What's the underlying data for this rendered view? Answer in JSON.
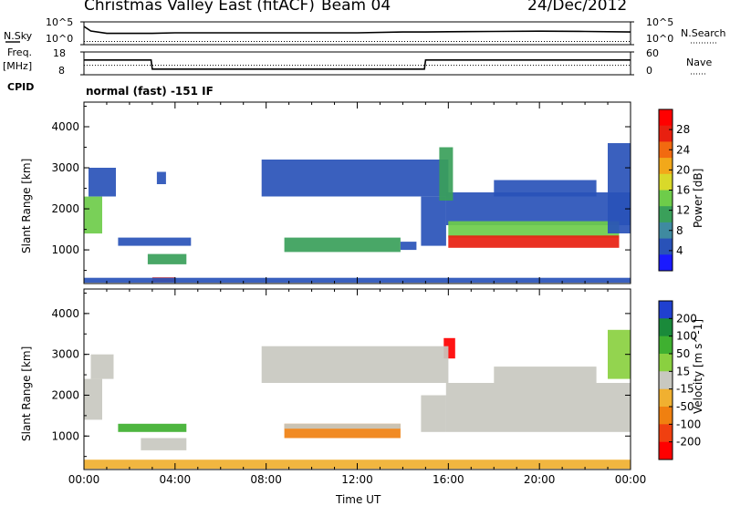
{
  "header": {
    "title": "Christmas Valley East (fitACF)",
    "beam": "Beam 04",
    "date": "24/Dec/2012"
  },
  "top_panels": {
    "nsky_label": "N.Sky",
    "nsearch_label": "N.Search",
    "nsky_ticks": [
      "10^5",
      "10^0"
    ],
    "nsearch_ticks": [
      "10^5",
      "10^0"
    ],
    "freq_label_1": "Freq.",
    "freq_label_2": "[MHz]",
    "freq_ticks": [
      "18",
      "8"
    ],
    "nave_label": "Nave",
    "nave_ticks": [
      "60",
      "0"
    ],
    "cpid_label": "CPID",
    "cpid_value": "normal (fast) -151 IF"
  },
  "colors": {
    "power_scale": [
      "#1a1aff",
      "#2952b8",
      "#3f8aa0",
      "#3aa05a",
      "#6ecc4a",
      "#d9d92a",
      "#f2a81a",
      "#f26a10",
      "#e82010",
      "#ff0000"
    ],
    "velocity_scale": [
      "#2040d0",
      "#1a8a3a",
      "#3fb030",
      "#8ad040",
      "#c8c8c0",
      "#f0b030",
      "#f08010",
      "#f04010",
      "#ff0000"
    ]
  },
  "chart_data": [
    {
      "type": "line",
      "panel": "N.Sky / N.Search",
      "x_unit": "hours UT",
      "x": [
        0,
        0.3,
        1,
        2,
        3,
        4,
        6,
        8,
        10,
        12,
        14,
        15,
        16,
        18,
        20,
        22,
        24
      ],
      "series": [
        {
          "name": "N.Sky",
          "values": [
            10000,
            1000,
            300,
            300,
            300,
            400,
            400,
            400,
            400,
            400,
            600,
            600,
            700,
            800,
            900,
            800,
            600
          ]
        },
        {
          "name": "N.Search",
          "values": [
            5,
            5,
            5,
            5,
            5,
            5,
            5,
            5,
            5,
            5,
            5,
            5,
            5,
            5,
            5,
            5,
            5
          ]
        }
      ],
      "yscale": "log",
      "ylim": [
        1,
        100000
      ]
    },
    {
      "type": "line",
      "panel": "Freq / Nave",
      "x_unit": "hours UT",
      "x": [
        0,
        2.95,
        3.0,
        14.95,
        15.0,
        24
      ],
      "series": [
        {
          "name": "Freq.",
          "values": [
            14.5,
            14.5,
            10.5,
            10.5,
            14.5,
            14.5
          ]
        },
        {
          "name": "Nave",
          "values": [
            25,
            25,
            25,
            25,
            25,
            25
          ]
        }
      ],
      "ylim": [
        8,
        18
      ],
      "y2lim": [
        0,
        60
      ]
    },
    {
      "type": "heatmap",
      "panel": "Power",
      "xlabel": "",
      "ylabel": "Slant Range [km]",
      "xlim": [
        0,
        24
      ],
      "ylim": [
        180,
        4600
      ],
      "yticks": [
        1000,
        2000,
        3000,
        4000
      ],
      "colorbar_label": "Power [dB]",
      "colorbar_ticks": [
        4,
        8,
        12,
        16,
        20,
        24,
        28
      ],
      "colorbar_range": [
        0,
        32
      ],
      "regions": [
        {
          "t0": 0.0,
          "t1": 0.8,
          "r0": 1400,
          "r1": 2300,
          "level": 14
        },
        {
          "t0": 0.2,
          "t1": 1.4,
          "r0": 2300,
          "r1": 3000,
          "level": 4
        },
        {
          "t0": 1.5,
          "t1": 4.7,
          "r0": 1100,
          "r1": 1300,
          "level": 4
        },
        {
          "t0": 2.8,
          "t1": 4.5,
          "r0": 650,
          "r1": 900,
          "level": 10
        },
        {
          "t0": 3.0,
          "t1": 4.0,
          "r0": 220,
          "r1": 330,
          "level": 28
        },
        {
          "t0": 0.0,
          "t1": 24.0,
          "r0": 200,
          "r1": 320,
          "level": 6
        },
        {
          "t0": 3.2,
          "t1": 3.6,
          "r0": 2600,
          "r1": 2900,
          "level": 4
        },
        {
          "t0": 7.8,
          "t1": 16.0,
          "r0": 2300,
          "r1": 3200,
          "level": 4
        },
        {
          "t0": 8.8,
          "t1": 13.9,
          "r0": 950,
          "r1": 1300,
          "level": 10
        },
        {
          "t0": 13.9,
          "t1": 14.6,
          "r0": 1000,
          "r1": 1200,
          "level": 6
        },
        {
          "t0": 14.8,
          "t1": 15.9,
          "r0": 1100,
          "r1": 2300,
          "level": 6
        },
        {
          "t0": 15.9,
          "t1": 24.0,
          "r0": 1600,
          "r1": 2400,
          "level": 6
        },
        {
          "t0": 16.0,
          "t1": 23.5,
          "r0": 1300,
          "r1": 1700,
          "level": 14
        },
        {
          "t0": 16.0,
          "t1": 23.5,
          "r0": 1050,
          "r1": 1350,
          "level": 28
        },
        {
          "t0": 18.0,
          "t1": 22.5,
          "r0": 2300,
          "r1": 2700,
          "level": 4
        },
        {
          "t0": 23.0,
          "t1": 24.0,
          "r0": 1400,
          "r1": 3600,
          "level": 4
        },
        {
          "t0": 15.6,
          "t1": 16.2,
          "r0": 2200,
          "r1": 3500,
          "level": 10
        }
      ]
    },
    {
      "type": "heatmap",
      "panel": "Velocity",
      "xlabel": "Time UT",
      "ylabel": "Slant Range [km]",
      "xticks": [
        "00:00",
        "04:00",
        "08:00",
        "12:00",
        "16:00",
        "20:00",
        "00:00"
      ],
      "xlim": [
        0,
        24
      ],
      "ylim": [
        180,
        4600
      ],
      "yticks": [
        1000,
        2000,
        3000,
        4000
      ],
      "colorbar_label": "Velocity [m s^-1]",
      "colorbar_ticks": [
        200,
        100,
        50,
        15,
        -15,
        -50,
        -100,
        -200
      ],
      "colorbar_range": [
        250,
        -250
      ],
      "regions": [
        {
          "t0": 0.0,
          "t1": 0.8,
          "r0": 1400,
          "r1": 2400,
          "level": 0
        },
        {
          "t0": 0.3,
          "t1": 1.3,
          "r0": 2400,
          "r1": 3000,
          "level": 10
        },
        {
          "t0": 1.5,
          "t1": 4.5,
          "r0": 1100,
          "r1": 1300,
          "level": 40
        },
        {
          "t0": 2.5,
          "t1": 4.5,
          "r0": 650,
          "r1": 950,
          "level": 5
        },
        {
          "t0": 0.0,
          "t1": 24.0,
          "r0": 200,
          "r1": 420,
          "level": -40
        },
        {
          "t0": 8.8,
          "t1": 13.9,
          "r0": 950,
          "r1": 1300,
          "level": -60
        },
        {
          "t0": 8.8,
          "t1": 13.9,
          "r0": 1180,
          "r1": 1300,
          "level": 0
        },
        {
          "t0": 14.8,
          "t1": 15.9,
          "r0": 1100,
          "r1": 2000,
          "level": 0
        },
        {
          "t0": 15.9,
          "t1": 24.0,
          "r0": 1100,
          "r1": 2300,
          "level": 0
        },
        {
          "t0": 18.0,
          "t1": 22.5,
          "r0": 2300,
          "r1": 2700,
          "level": 0
        },
        {
          "t0": 23.0,
          "t1": 24.0,
          "r0": 2400,
          "r1": 3600,
          "level": 30
        },
        {
          "t0": 15.8,
          "t1": 16.3,
          "r0": 2900,
          "r1": 3400,
          "level": -230
        },
        {
          "t0": 7.8,
          "t1": 16.0,
          "r0": 2300,
          "r1": 3200,
          "level": 0
        }
      ]
    }
  ]
}
